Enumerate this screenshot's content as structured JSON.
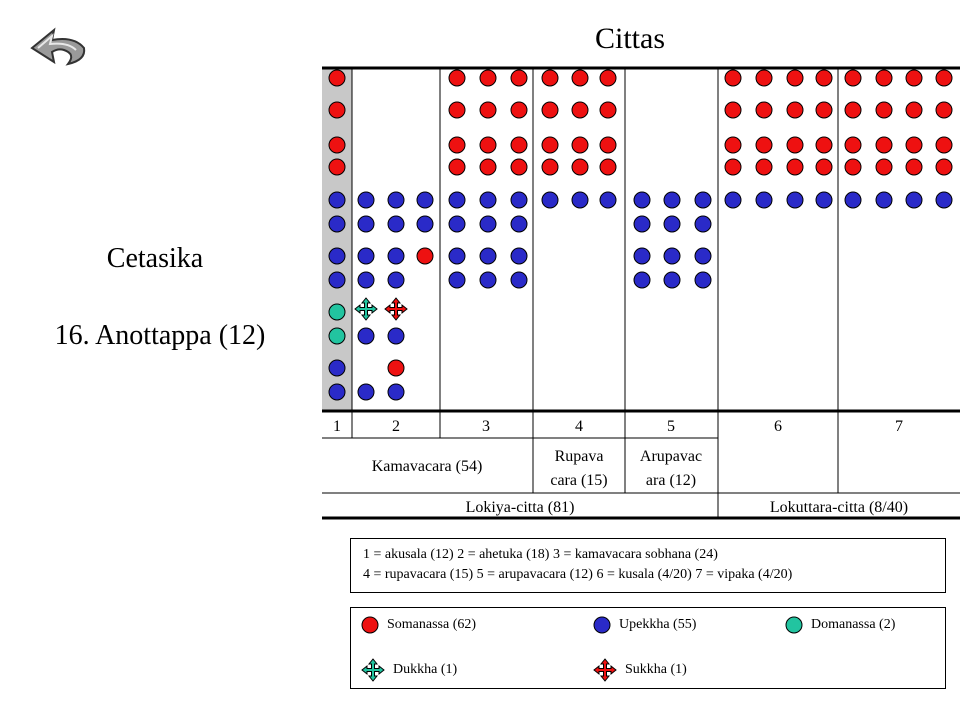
{
  "title": "Cittas",
  "subtitle": "Cetasika",
  "cetasika_name": "16. Anottappa (12)",
  "columns": [
    "1",
    "2",
    "3",
    "4",
    "5",
    "6",
    "7"
  ],
  "groups_row": {
    "kamavacara": "Kamavacara  (54)",
    "rupavacara_line1": "Rupava",
    "rupavacara_line2": "cara  (15)",
    "arupavacara_line1": "Arupavac",
    "arupavacara_line2": "ara  (12)"
  },
  "bottom_row": {
    "lokiya": "Lokiya-citta  (81)",
    "lokuttara": "Lokuttara-citta  (8/40)"
  },
  "key": {
    "line1": "1 = akusala (12) 2 = ahetuka (18) 3 = kamavacara sobhana (24)",
    "line2": "4 = rupavacara (15) 5 = arupavacara (12) 6 = kusala (4/20) 7 = vipaka (4/20)"
  },
  "legend": {
    "somanassa": "Somanassa (62)",
    "upekkha": "Upekkha (55)",
    "domanassa": "Domanassa (2)",
    "dukkha": "Dukkha (1)",
    "sukkha": "Sukkha (1)"
  },
  "colors": {
    "somanassa": "#ee1111",
    "upekkha": "#2a2ac8",
    "domanassa": "#22c4a0",
    "highlight": "#c8c8c8"
  },
  "icons": {
    "back": "back-arrow-icon",
    "dukkha": "four-way-arrow-icon",
    "sukkha": "four-way-arrow-icon"
  }
}
